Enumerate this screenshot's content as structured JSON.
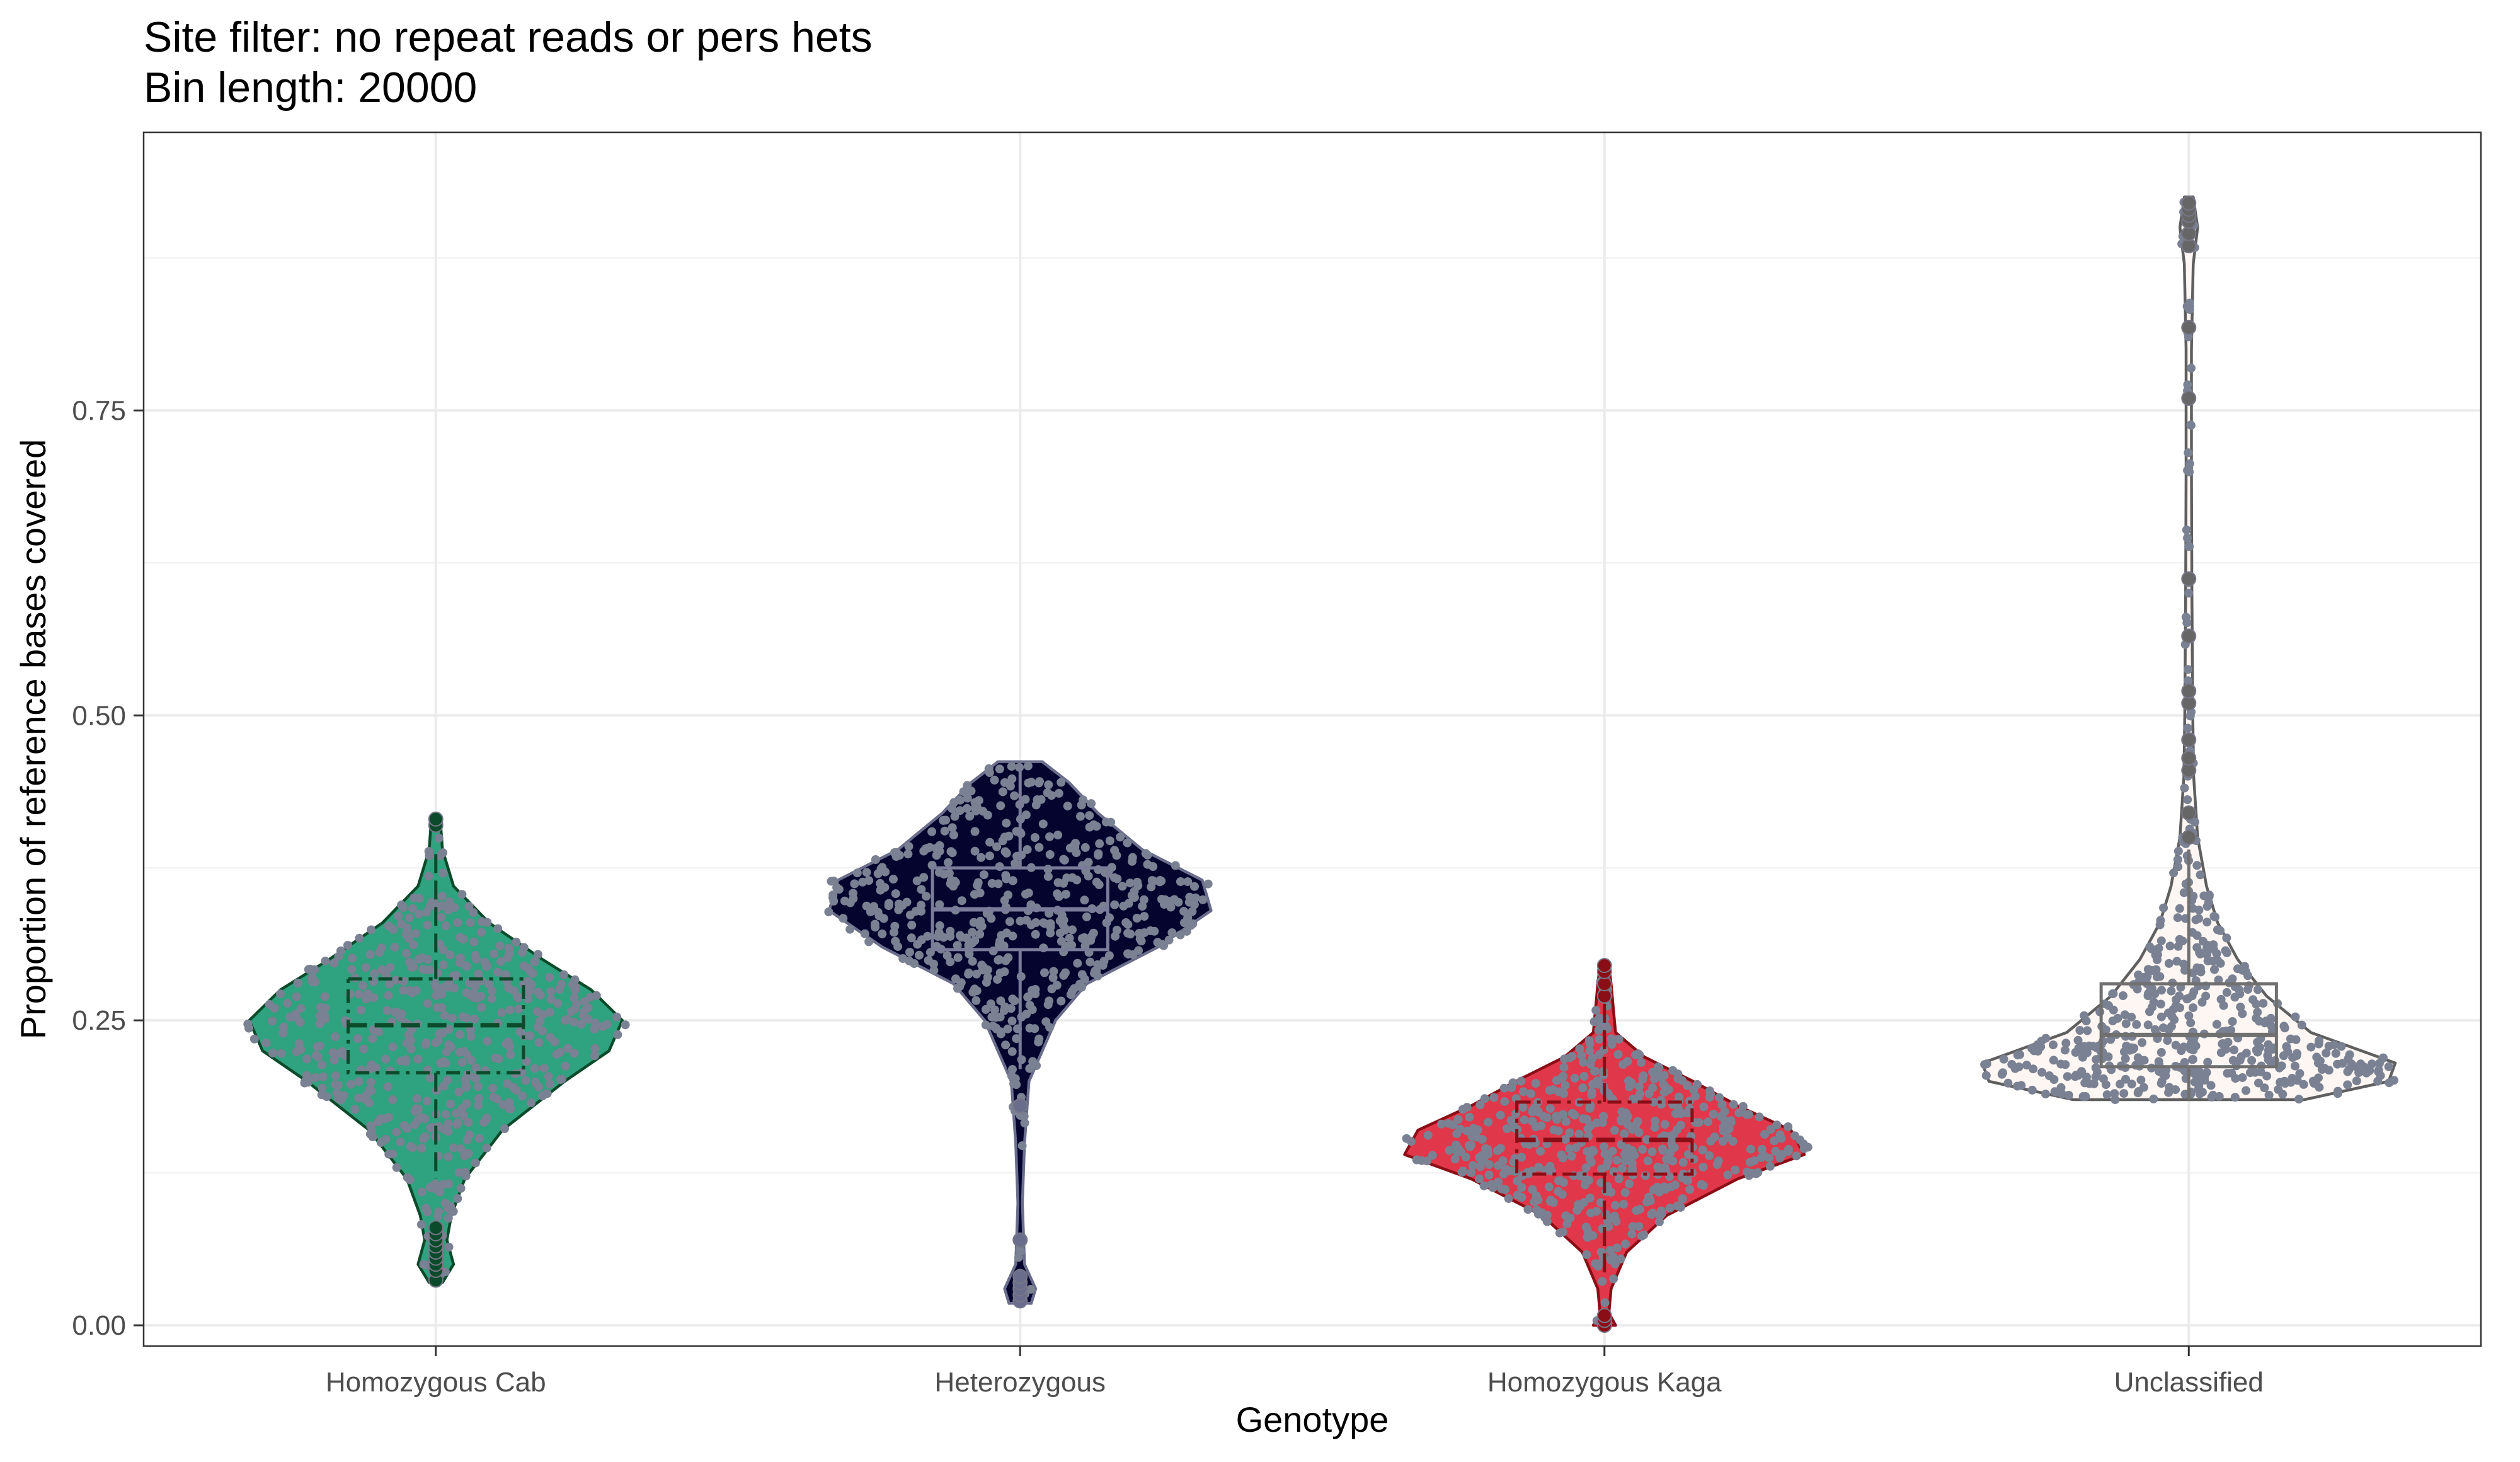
{
  "chart_data": {
    "type": "violin",
    "title": "Site filter: no repeat reads or pers hets",
    "subtitle": "Bin length: 20000",
    "xlabel": "Genotype",
    "ylabel": "Proportion of reference bases covered",
    "ylim": [
      -0.017,
      0.978
    ],
    "yticks": [
      0,
      0.25,
      0.5,
      0.75
    ],
    "ytick_labels": [
      "0.00",
      "0.25",
      "0.50",
      "0.75"
    ],
    "grid": true,
    "point_color": "#7a8192",
    "categories": [
      "Homozygous Cab",
      "Heterozygous",
      "Homozygous Kaga",
      "Unclassified"
    ],
    "groups": [
      {
        "name": "Homozygous Cab",
        "fill": "#2fa27f",
        "outline": "#0b4a2a",
        "box": {
          "q1": 0.207,
          "median": 0.246,
          "q3": 0.284,
          "lower": 0.12,
          "upper": 0.39
        },
        "range": [
          0.035,
          0.415
        ],
        "density": [
          [
            0.035,
            0.03
          ],
          [
            0.05,
            0.08
          ],
          [
            0.07,
            0.05
          ],
          [
            0.09,
            0.07
          ],
          [
            0.12,
            0.13
          ],
          [
            0.16,
            0.3
          ],
          [
            0.2,
            0.58
          ],
          [
            0.225,
            0.78
          ],
          [
            0.25,
            0.84
          ],
          [
            0.275,
            0.7
          ],
          [
            0.3,
            0.48
          ],
          [
            0.33,
            0.24
          ],
          [
            0.36,
            0.08
          ],
          [
            0.39,
            0.03
          ],
          [
            0.415,
            0.02
          ]
        ],
        "outliers": [
          0.037,
          0.045,
          0.05,
          0.055,
          0.06,
          0.065,
          0.07,
          0.075,
          0.08,
          0.41,
          0.415
        ]
      },
      {
        "name": "Heterozygous",
        "fill": "#04042e",
        "outline": "#6b6d8c",
        "box": {
          "q1": 0.308,
          "median": 0.341,
          "q3": 0.375,
          "lower": 0.21,
          "upper": 0.46
        },
        "range": [
          0.018,
          0.462
        ],
        "density": [
          [
            0.018,
            0.05
          ],
          [
            0.03,
            0.07
          ],
          [
            0.05,
            0.02
          ],
          [
            0.1,
            0.01
          ],
          [
            0.15,
            0.02
          ],
          [
            0.2,
            0.04
          ],
          [
            0.25,
            0.16
          ],
          [
            0.28,
            0.3
          ],
          [
            0.31,
            0.62
          ],
          [
            0.34,
            0.86
          ],
          [
            0.365,
            0.82
          ],
          [
            0.39,
            0.55
          ],
          [
            0.42,
            0.35
          ],
          [
            0.445,
            0.22
          ],
          [
            0.462,
            0.1
          ]
        ],
        "outliers": [
          0.02,
          0.025,
          0.03,
          0.035,
          0.04,
          0.07,
          0.18
        ]
      },
      {
        "name": "Homozygous Kaga",
        "fill": "#e0384a",
        "outline": "#8b0d15",
        "box": {
          "q1": 0.124,
          "median": 0.152,
          "q3": 0.183,
          "lower": 0.04,
          "upper": 0.27
        },
        "range": [
          0.0,
          0.295
        ],
        "density": [
          [
            0.0,
            0.05
          ],
          [
            0.01,
            0.02
          ],
          [
            0.03,
            0.03
          ],
          [
            0.06,
            0.1
          ],
          [
            0.09,
            0.28
          ],
          [
            0.12,
            0.6
          ],
          [
            0.14,
            0.9
          ],
          [
            0.16,
            0.84
          ],
          [
            0.18,
            0.6
          ],
          [
            0.2,
            0.4
          ],
          [
            0.22,
            0.18
          ],
          [
            0.24,
            0.05
          ],
          [
            0.26,
            0.04
          ],
          [
            0.28,
            0.03
          ],
          [
            0.295,
            0.02
          ]
        ],
        "outliers": [
          0.0,
          0.004,
          0.008,
          0.27,
          0.28,
          0.29,
          0.295
        ]
      },
      {
        "name": "Unclassified",
        "fill": "#fdf6f3",
        "outline": "#5f5f5f",
        "box": {
          "q1": 0.212,
          "median": 0.238,
          "q3": 0.28,
          "lower": 0.185,
          "upper": 0.39
        },
        "range": [
          0.185,
          0.925
        ],
        "density": [
          [
            0.185,
            0.52
          ],
          [
            0.2,
            0.9
          ],
          [
            0.215,
            0.93
          ],
          [
            0.24,
            0.55
          ],
          [
            0.27,
            0.35
          ],
          [
            0.3,
            0.22
          ],
          [
            0.33,
            0.13
          ],
          [
            0.36,
            0.08
          ],
          [
            0.4,
            0.04
          ],
          [
            0.45,
            0.022
          ],
          [
            0.5,
            0.018
          ],
          [
            0.6,
            0.014
          ],
          [
            0.7,
            0.012
          ],
          [
            0.8,
            0.012
          ],
          [
            0.87,
            0.02
          ],
          [
            0.9,
            0.04
          ],
          [
            0.925,
            0.02
          ]
        ],
        "outliers": [
          0.4,
          0.42,
          0.455,
          0.465,
          0.48,
          0.51,
          0.52,
          0.565,
          0.612,
          0.76,
          0.818,
          0.885,
          0.895,
          0.905,
          0.91,
          0.915,
          0.92
        ]
      }
    ]
  }
}
